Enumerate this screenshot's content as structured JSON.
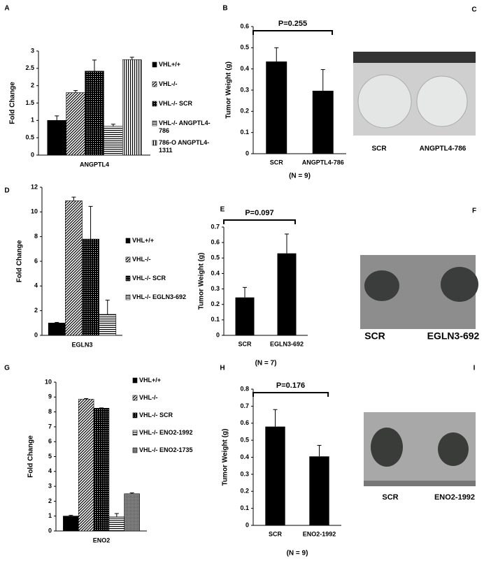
{
  "chart_data": [
    {
      "type": "bar",
      "panel": "A",
      "y_label": "Fold Change",
      "categories": [
        "ANGPTL4"
      ],
      "series": [
        {
          "name": "VHL+/+",
          "color": "#000000",
          "pattern": "solid",
          "values": [
            1.0
          ],
          "errors": [
            0.13
          ]
        },
        {
          "name": "VHL-/-",
          "color": "#000000",
          "pattern": "diagonal",
          "values": [
            1.8
          ],
          "errors": [
            0.06
          ]
        },
        {
          "name": "VHL-/- SCR",
          "color": "#000000",
          "pattern": "dots",
          "values": [
            2.42
          ],
          "errors": [
            0.32
          ]
        },
        {
          "name": "VHL-/- ANGPTL4-786",
          "color": "#000000",
          "pattern": "horizontal",
          "values": [
            0.83
          ],
          "errors": [
            0.06
          ]
        },
        {
          "name": "786-O ANGPTL4-1311",
          "color": "#000000",
          "pattern": "vertical",
          "values": [
            2.75
          ],
          "errors": [
            0.07
          ]
        }
      ],
      "ylim": [
        0,
        3
      ],
      "yticks": [
        0,
        0.5,
        1,
        1.5,
        2,
        2.5,
        3
      ]
    },
    {
      "type": "bar",
      "panel": "B",
      "y_label": "Tumor Weight (g)",
      "categories": [
        "SCR",
        "ANGPTL4-786"
      ],
      "values": [
        0.435,
        0.297
      ],
      "errors": [
        0.065,
        0.1
      ],
      "color": "#000000",
      "annotation": "P=0.255",
      "note": "(N = 9)",
      "ylim": [
        0,
        0.6
      ],
      "yticks": [
        0,
        0.1,
        0.2,
        0.3,
        0.4,
        0.5,
        0.6
      ]
    },
    {
      "type": "bar",
      "panel": "D",
      "y_label": "Fold Change",
      "categories": [
        "EGLN3"
      ],
      "series": [
        {
          "name": "VHL+/+",
          "color": "#000000",
          "pattern": "solid",
          "values": [
            1.0
          ],
          "errors": [
            0.05
          ]
        },
        {
          "name": "VHL-/-",
          "color": "#000000",
          "pattern": "diagonal",
          "values": [
            10.9
          ],
          "errors": [
            0.3
          ]
        },
        {
          "name": "VHL-/- SCR",
          "color": "#000000",
          "pattern": "dots",
          "values": [
            7.8
          ],
          "errors": [
            2.65
          ]
        },
        {
          "name": "VHL-/- EGLN3-692",
          "color": "#000000",
          "pattern": "horizontal",
          "values": [
            1.7
          ],
          "errors": [
            1.15
          ]
        }
      ],
      "ylim": [
        0,
        12
      ],
      "yticks": [
        0,
        2,
        4,
        6,
        8,
        10,
        12
      ]
    },
    {
      "type": "bar",
      "panel": "E",
      "y_label": "Tumor Weight (g)",
      "categories": [
        "SCR",
        "EGLN3-692"
      ],
      "values": [
        0.245,
        0.53
      ],
      "errors": [
        0.065,
        0.125
      ],
      "color": "#000000",
      "annotation": "P=0.097",
      "note": "(N = 7)",
      "ylim": [
        0,
        0.7
      ],
      "yticks": [
        0,
        0.1,
        0.2,
        0.3,
        0.4,
        0.5,
        0.6,
        0.7
      ]
    },
    {
      "type": "bar",
      "panel": "G",
      "y_label": "Fold Change",
      "categories": [
        "ENO2"
      ],
      "series": [
        {
          "name": "VHL+/+",
          "color": "#000000",
          "pattern": "solid",
          "values": [
            1.0
          ],
          "errors": [
            0.05
          ]
        },
        {
          "name": "VHL-/-",
          "color": "#000000",
          "pattern": "diagonal",
          "values": [
            8.85
          ],
          "errors": [
            0.05
          ]
        },
        {
          "name": "VHL-/- SCR",
          "color": "#000000",
          "pattern": "dots",
          "values": [
            8.25
          ],
          "errors": [
            0.02
          ]
        },
        {
          "name": "VHL-/- ENO2-1992",
          "color": "#000000",
          "pattern": "horizontal",
          "values": [
            0.95
          ],
          "errors": [
            0.22
          ]
        },
        {
          "name": "VHL-/- ENO2-1735",
          "color": "#000000",
          "pattern": "gray",
          "values": [
            2.5
          ],
          "errors": [
            0.06
          ]
        }
      ],
      "ylim": [
        0,
        10
      ],
      "yticks": [
        0,
        1,
        2,
        3,
        4,
        5,
        6,
        7,
        8,
        9,
        10
      ]
    },
    {
      "type": "bar",
      "panel": "H",
      "y_label": "Tumor Weight (g)",
      "categories": [
        "SCR",
        "ENO2-1992"
      ],
      "values": [
        0.58,
        0.405
      ],
      "errors": [
        0.1,
        0.065
      ],
      "color": "#000000",
      "annotation": "P=0.176",
      "note": "(N = 9)",
      "ylim": [
        0,
        0.8
      ],
      "yticks": [
        0,
        0.1,
        0.2,
        0.3,
        0.4,
        0.5,
        0.6,
        0.7,
        0.8
      ]
    }
  ],
  "photos": [
    {
      "panel": "C",
      "labels": [
        "SCR",
        "ANGPTL4-786"
      ]
    },
    {
      "panel": "F",
      "labels": [
        "SCR",
        "EGLN3-692"
      ]
    },
    {
      "panel": "I",
      "labels": [
        "SCR",
        "ENO2-1992"
      ]
    }
  ]
}
